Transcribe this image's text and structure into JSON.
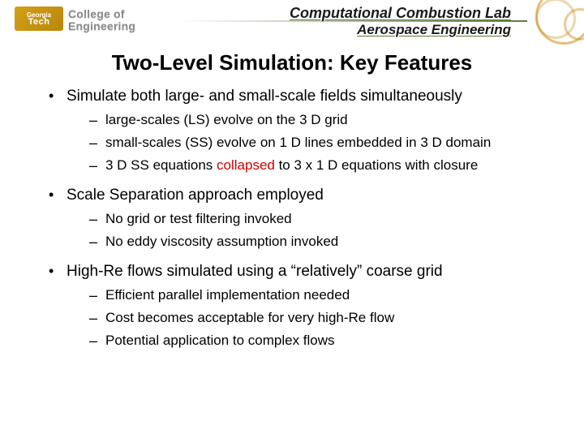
{
  "header": {
    "logo_top": "Georgia",
    "logo_bottom": "Tech",
    "college_line1": "College of",
    "college_line2": "Engineering",
    "lab_line1": "Computational Combustion Lab",
    "lab_line2": "Aerospace Engineering"
  },
  "title": "Two-Level Simulation: Key Features",
  "bullets": [
    {
      "text": "Simulate both large- and small-scale fields simultaneously",
      "subs": [
        {
          "pre": "large-scales (LS) evolve on the 3 D grid"
        },
        {
          "pre": "small-scales (SS) evolve on 1 D lines embedded in 3 D domain"
        },
        {
          "pre": "3 D SS equations ",
          "red": "collapsed",
          "post": " to 3 x 1 D equations with closure"
        }
      ]
    },
    {
      "text": "Scale Separation approach employed",
      "subs": [
        {
          "pre": "No grid or test filtering invoked"
        },
        {
          "pre": "No eddy viscosity assumption invoked"
        }
      ]
    },
    {
      "text": "High-Re flows simulated using a “relatively” coarse grid",
      "subs": [
        {
          "pre": "Efficient parallel implementation needed"
        },
        {
          "pre": "Cost becomes acceptable for very high-Re flow"
        },
        {
          "pre": "Potential application to complex flows"
        }
      ]
    }
  ],
  "colors": {
    "red": "#cc0000",
    "green_underline": "#5a7a3a",
    "logo_gold": "#d4a017",
    "background": "#ffffff"
  }
}
